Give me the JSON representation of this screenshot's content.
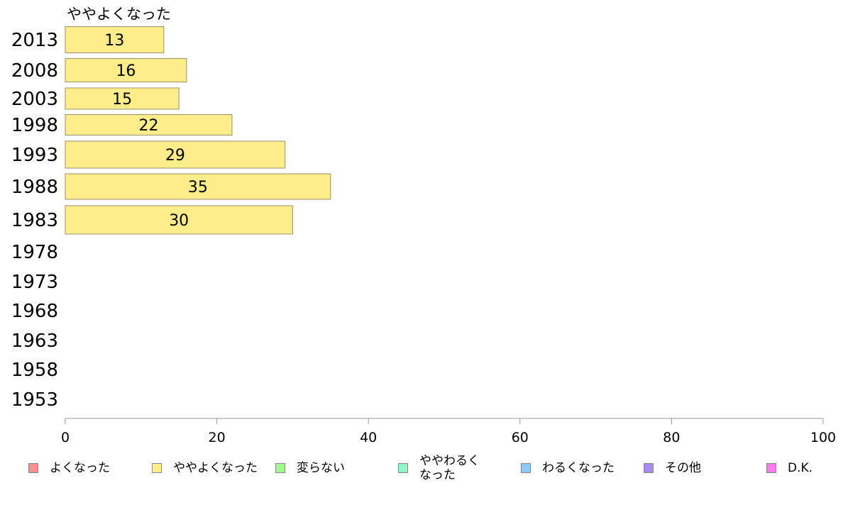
{
  "chart_data": {
    "type": "bar",
    "orientation": "horizontal",
    "title": "ややよくなった",
    "categories": [
      "2013",
      "2008",
      "2003",
      "1998",
      "1993",
      "1988",
      "1983",
      "1978",
      "1973",
      "1968",
      "1963",
      "1958",
      "1953"
    ],
    "values": [
      13,
      16,
      15,
      22,
      29,
      35,
      30,
      null,
      null,
      null,
      null,
      null,
      null
    ],
    "xlim": [
      0,
      100
    ],
    "xticks": [
      "0",
      "20",
      "40",
      "60",
      "80",
      "100"
    ],
    "bar_color": "#ffec8a",
    "bar_stroke": "#9a9070",
    "grid": false,
    "legend_position": "bottom",
    "legend": [
      {
        "label": "よくなった",
        "color": "#f7918f"
      },
      {
        "label": "ややよくなった",
        "color": "#ffec8a"
      },
      {
        "label": "変らない",
        "color": "#a6f78b"
      },
      {
        "label": "ややわるく\nなった",
        "color": "#8ff5c6"
      },
      {
        "label": "わるくなった",
        "color": "#8cc9f7"
      },
      {
        "label": "その他",
        "color": "#a68bf0"
      },
      {
        "label": "D.K.",
        "color": "#f77de8"
      }
    ]
  }
}
